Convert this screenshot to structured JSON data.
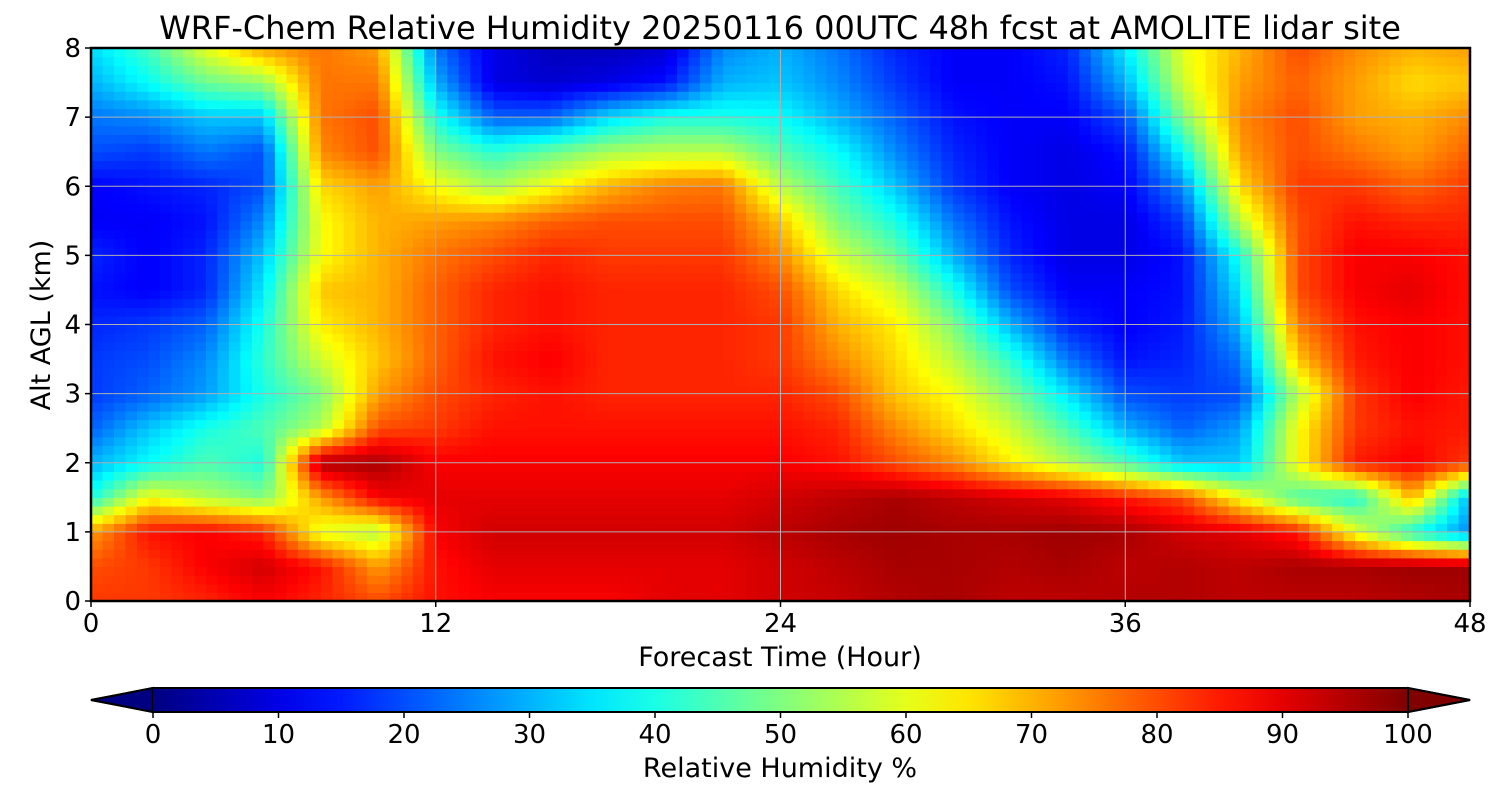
{
  "chart_data": {
    "type": "heatmap",
    "title": "WRF-Chem Relative Humidity 20250116 00UTC 48h fcst at AMOLITE lidar site",
    "xlabel": "Forecast Time (Hour)",
    "ylabel": "Alt AGL (km)",
    "xlim": [
      0,
      48
    ],
    "ylim": [
      0,
      8
    ],
    "xticks": [
      "0",
      "12",
      "24",
      "36",
      "48"
    ],
    "yticks": [
      "0",
      "1",
      "2",
      "3",
      "4",
      "5",
      "6",
      "7",
      "8"
    ],
    "grid": true,
    "x": [
      0,
      2,
      4,
      6,
      8,
      10,
      12,
      14,
      16,
      18,
      20,
      22,
      24,
      26,
      28,
      30,
      32,
      34,
      36,
      38,
      40,
      42,
      44,
      46,
      48
    ],
    "y": [
      0,
      0.5,
      1,
      1.5,
      2,
      2.5,
      3,
      3.5,
      4,
      4.5,
      5,
      5.5,
      6,
      6.5,
      7,
      7.5,
      8
    ],
    "z_units": "Relative Humidity %",
    "z": [
      [
        82,
        82,
        84,
        88,
        84,
        80,
        86,
        88,
        88,
        88,
        90,
        90,
        92,
        93,
        95,
        96,
        94,
        94,
        95,
        95,
        94,
        94,
        94,
        95,
        96
      ],
      [
        80,
        82,
        88,
        92,
        86,
        72,
        86,
        90,
        90,
        90,
        90,
        90,
        92,
        94,
        96,
        96,
        95,
        96,
        94,
        95,
        94,
        96,
        96,
        97,
        97
      ],
      [
        72,
        86,
        88,
        84,
        60,
        55,
        88,
        92,
        92,
        92,
        92,
        92,
        94,
        96,
        97,
        96,
        96,
        97,
        96,
        92,
        90,
        85,
        60,
        40,
        26
      ],
      [
        40,
        62,
        55,
        50,
        72,
        88,
        90,
        90,
        90,
        90,
        90,
        90,
        92,
        94,
        96,
        94,
        92,
        90,
        85,
        80,
        62,
        45,
        40,
        70,
        30
      ],
      [
        30,
        38,
        45,
        40,
        96,
        96,
        88,
        88,
        88,
        88,
        88,
        88,
        88,
        86,
        80,
        74,
        64,
        55,
        45,
        32,
        32,
        62,
        85,
        88,
        82
      ],
      [
        22,
        32,
        40,
        45,
        55,
        80,
        82,
        86,
        86,
        86,
        86,
        86,
        86,
        84,
        74,
        66,
        58,
        45,
        30,
        22,
        28,
        62,
        82,
        86,
        85
      ],
      [
        18,
        22,
        28,
        40,
        50,
        72,
        80,
        84,
        86,
        84,
        84,
        84,
        84,
        80,
        68,
        62,
        50,
        35,
        20,
        18,
        20,
        55,
        82,
        88,
        85
      ],
      [
        18,
        20,
        26,
        42,
        58,
        68,
        78,
        86,
        88,
        84,
        84,
        84,
        82,
        74,
        66,
        56,
        42,
        24,
        14,
        16,
        24,
        68,
        85,
        88,
        86
      ],
      [
        16,
        18,
        22,
        40,
        64,
        70,
        78,
        84,
        86,
        84,
        84,
        84,
        82,
        70,
        64,
        50,
        30,
        16,
        12,
        15,
        30,
        75,
        86,
        88,
        86
      ],
      [
        14,
        12,
        16,
        36,
        68,
        70,
        78,
        84,
        86,
        84,
        84,
        84,
        80,
        66,
        58,
        40,
        20,
        12,
        12,
        14,
        35,
        80,
        88,
        90,
        86
      ],
      [
        16,
        12,
        16,
        32,
        62,
        70,
        76,
        80,
        84,
        82,
        82,
        82,
        74,
        58,
        48,
        30,
        16,
        10,
        10,
        14,
        40,
        80,
        88,
        88,
        86
      ],
      [
        12,
        12,
        14,
        26,
        62,
        70,
        72,
        74,
        78,
        80,
        80,
        80,
        68,
        50,
        40,
        24,
        14,
        10,
        10,
        18,
        56,
        80,
        86,
        84,
        84
      ],
      [
        12,
        14,
        16,
        20,
        66,
        72,
        62,
        54,
        62,
        70,
        75,
        76,
        56,
        44,
        32,
        18,
        12,
        10,
        12,
        26,
        66,
        82,
        82,
        78,
        82
      ],
      [
        20,
        18,
        24,
        20,
        74,
        80,
        50,
        42,
        48,
        54,
        56,
        56,
        46,
        38,
        26,
        16,
        12,
        10,
        14,
        38,
        72,
        80,
        76,
        72,
        78
      ],
      [
        24,
        26,
        32,
        32,
        76,
        80,
        40,
        22,
        22,
        34,
        40,
        40,
        38,
        30,
        22,
        14,
        12,
        12,
        20,
        50,
        74,
        80,
        72,
        70,
        74
      ],
      [
        30,
        38,
        48,
        52,
        76,
        76,
        30,
        10,
        8,
        10,
        14,
        30,
        32,
        26,
        18,
        12,
        12,
        14,
        30,
        58,
        72,
        78,
        72,
        66,
        68
      ],
      [
        34,
        44,
        60,
        72,
        76,
        72,
        24,
        10,
        6,
        6,
        8,
        26,
        30,
        24,
        16,
        12,
        12,
        16,
        36,
        60,
        70,
        80,
        74,
        70,
        72
      ]
    ],
    "colorbar": {
      "label": "Relative Humidity %",
      "min": 0,
      "max": 100,
      "ticks": [
        "0",
        "10",
        "20",
        "30",
        "40",
        "50",
        "60",
        "70",
        "80",
        "90",
        "100"
      ],
      "extend": "both"
    }
  },
  "colors": {
    "grid": "#b0b0b0",
    "frame": "#000000"
  }
}
